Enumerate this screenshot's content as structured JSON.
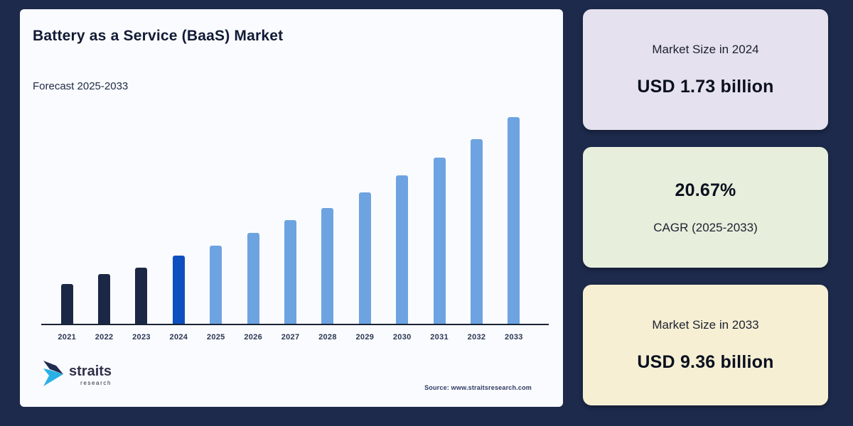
{
  "page": {
    "background_color": "#1d2a4b",
    "panel_background": "#fafbfe"
  },
  "chart_panel": {
    "title": "Battery as a Service (BaaS) Market",
    "subtitle": "Forecast 2025-2033",
    "source_text": "Source: www.straitsresearch.com",
    "logo": {
      "name": "straits",
      "subname": "research",
      "icon": "straits-chevron-icon",
      "icon_colors": {
        "dark": "#1e2c4e",
        "light": "#29b1e6"
      }
    }
  },
  "chart_data": {
    "type": "bar",
    "title": "Battery as a Service (BaaS) Market",
    "subtitle": "Forecast 2025-2033",
    "categories": [
      "2021",
      "2022",
      "2023",
      "2024",
      "2025",
      "2026",
      "2027",
      "2028",
      "2029",
      "2030",
      "2031",
      "2032",
      "2033"
    ],
    "series": [
      {
        "name": "Market size (relative bar height, px — no value axis shown)",
        "values": [
          56,
          70,
          79,
          96,
          110,
          128,
          146,
          163,
          185,
          209,
          234,
          260,
          291
        ]
      }
    ],
    "bar_colors": [
      "#1b2845",
      "#1b2845",
      "#1b2845",
      "#0d4fbe",
      "#6da3e0",
      "#6da3e0",
      "#6da3e0",
      "#6da3e0",
      "#6da3e0",
      "#6da3e0",
      "#6da3e0",
      "#6da3e0",
      "#6da3e0"
    ],
    "color_roles": {
      "historical_2021_2023": "#1b2845",
      "base_year_2024": "#0d4fbe",
      "forecast_2025_2033": "#6da3e0"
    },
    "xlabel": "",
    "ylabel": "",
    "value_axis_shown": false,
    "grid": false,
    "legend": false,
    "known_values_usd_billion": {
      "2024": 1.73,
      "2033": 9.36
    },
    "cagr_2025_2033_percent": 20.67
  },
  "cards": [
    {
      "label": "Market Size in 2024",
      "value": "USD 1.73 billion",
      "bg": "#e5e1ee"
    },
    {
      "label": "CAGR (2025-2033)",
      "value": "20.67%",
      "bg": "#e7eedb"
    },
    {
      "label": "Market Size in 2033",
      "value": "USD 9.36 billion",
      "bg": "#f6efd3"
    }
  ]
}
